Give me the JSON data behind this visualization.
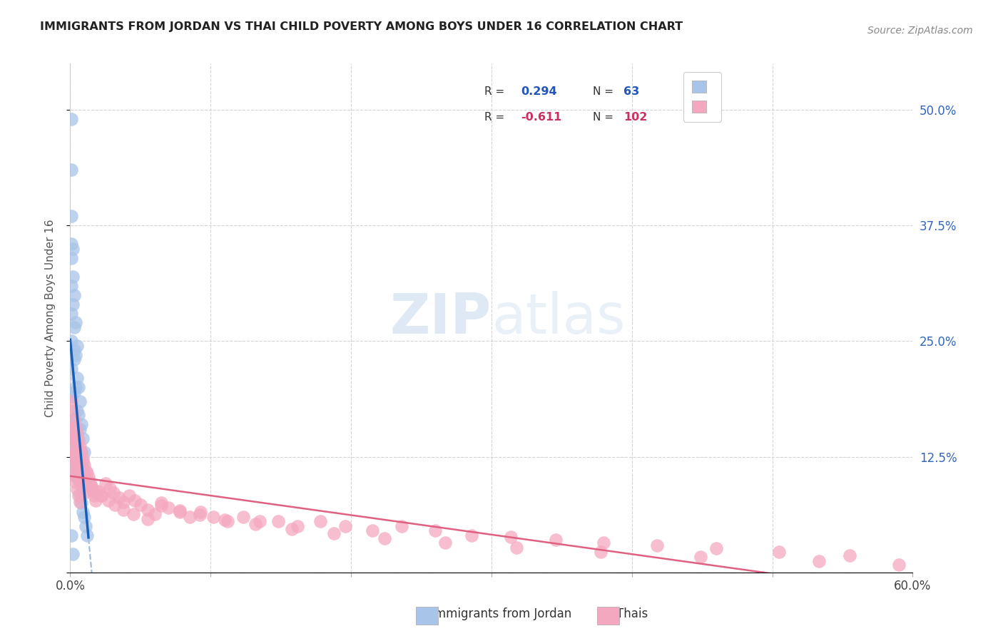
{
  "title": "IMMIGRANTS FROM JORDAN VS THAI CHILD POVERTY AMONG BOYS UNDER 16 CORRELATION CHART",
  "source": "Source: ZipAtlas.com",
  "ylabel": "Child Poverty Among Boys Under 16",
  "xlim": [
    0,
    0.6
  ],
  "ylim": [
    0,
    0.55
  ],
  "jordan_color": "#a8c4e8",
  "thai_color": "#f4a8c0",
  "jordan_line_color": "#1a5db5",
  "thai_line_color": "#e06080",
  "background_color": "#ffffff",
  "grid_color": "#d0d0d0",
  "jordan_x": [
    0.001,
    0.001,
    0.001,
    0.002,
    0.002,
    0.003,
    0.003,
    0.003,
    0.003,
    0.004,
    0.004,
    0.004,
    0.005,
    0.005,
    0.005,
    0.006,
    0.006,
    0.007,
    0.007,
    0.007,
    0.008,
    0.008,
    0.009,
    0.009,
    0.01,
    0.01,
    0.001,
    0.001,
    0.001,
    0.001,
    0.001,
    0.001,
    0.001,
    0.001,
    0.002,
    0.002,
    0.002,
    0.002,
    0.002,
    0.003,
    0.003,
    0.003,
    0.004,
    0.004,
    0.005,
    0.005,
    0.006,
    0.007,
    0.008,
    0.009,
    0.01,
    0.011,
    0.012,
    0.001,
    0.002,
    0.001,
    0.001,
    0.002,
    0.003,
    0.004,
    0.001,
    0.001,
    0.002
  ],
  "jordan_y": [
    0.49,
    0.435,
    0.385,
    0.165,
    0.14,
    0.3,
    0.265,
    0.23,
    0.195,
    0.27,
    0.235,
    0.2,
    0.245,
    0.21,
    0.175,
    0.2,
    0.17,
    0.185,
    0.155,
    0.13,
    0.16,
    0.13,
    0.145,
    0.12,
    0.13,
    0.1,
    0.34,
    0.31,
    0.28,
    0.25,
    0.22,
    0.19,
    0.16,
    0.355,
    0.35,
    0.32,
    0.29,
    0.165,
    0.14,
    0.24,
    0.165,
    0.135,
    0.155,
    0.12,
    0.14,
    0.11,
    0.1,
    0.085,
    0.075,
    0.065,
    0.06,
    0.05,
    0.04,
    0.04,
    0.02,
    0.15,
    0.145,
    0.135,
    0.12,
    0.105,
    0.115,
    0.13,
    0.155
  ],
  "thai_x": [
    0.001,
    0.001,
    0.001,
    0.002,
    0.002,
    0.002,
    0.003,
    0.003,
    0.003,
    0.004,
    0.004,
    0.004,
    0.005,
    0.005,
    0.005,
    0.006,
    0.006,
    0.006,
    0.007,
    0.007,
    0.007,
    0.008,
    0.008,
    0.009,
    0.009,
    0.01,
    0.01,
    0.011,
    0.012,
    0.013,
    0.014,
    0.015,
    0.016,
    0.017,
    0.018,
    0.02,
    0.022,
    0.025,
    0.028,
    0.031,
    0.035,
    0.038,
    0.042,
    0.046,
    0.05,
    0.055,
    0.06,
    0.065,
    0.07,
    0.078,
    0.085,
    0.093,
    0.102,
    0.112,
    0.123,
    0.135,
    0.148,
    0.162,
    0.178,
    0.196,
    0.215,
    0.236,
    0.26,
    0.286,
    0.314,
    0.346,
    0.38,
    0.418,
    0.46,
    0.505,
    0.555,
    0.59,
    0.003,
    0.004,
    0.005,
    0.006,
    0.007,
    0.008,
    0.009,
    0.01,
    0.012,
    0.015,
    0.018,
    0.022,
    0.027,
    0.032,
    0.038,
    0.045,
    0.055,
    0.065,
    0.078,
    0.092,
    0.11,
    0.132,
    0.158,
    0.188,
    0.224,
    0.267,
    0.318,
    0.378,
    0.449,
    0.533
  ],
  "thai_y": [
    0.185,
    0.155,
    0.125,
    0.175,
    0.145,
    0.115,
    0.165,
    0.135,
    0.105,
    0.158,
    0.128,
    0.098,
    0.15,
    0.12,
    0.09,
    0.143,
    0.113,
    0.083,
    0.136,
    0.106,
    0.076,
    0.13,
    0.1,
    0.123,
    0.093,
    0.116,
    0.086,
    0.11,
    0.108,
    0.103,
    0.098,
    0.093,
    0.088,
    0.083,
    0.078,
    0.088,
    0.083,
    0.096,
    0.091,
    0.086,
    0.081,
    0.076,
    0.083,
    0.078,
    0.073,
    0.068,
    0.063,
    0.075,
    0.07,
    0.065,
    0.06,
    0.065,
    0.06,
    0.055,
    0.06,
    0.055,
    0.055,
    0.05,
    0.055,
    0.05,
    0.045,
    0.05,
    0.045,
    0.04,
    0.038,
    0.035,
    0.032,
    0.029,
    0.026,
    0.022,
    0.018,
    0.008,
    0.155,
    0.142,
    0.132,
    0.122,
    0.118,
    0.113,
    0.108,
    0.103,
    0.098,
    0.093,
    0.088,
    0.083,
    0.078,
    0.073,
    0.068,
    0.063,
    0.058,
    0.072,
    0.067,
    0.062,
    0.057,
    0.052,
    0.047,
    0.042,
    0.037,
    0.032,
    0.027,
    0.022,
    0.017,
    0.012
  ]
}
